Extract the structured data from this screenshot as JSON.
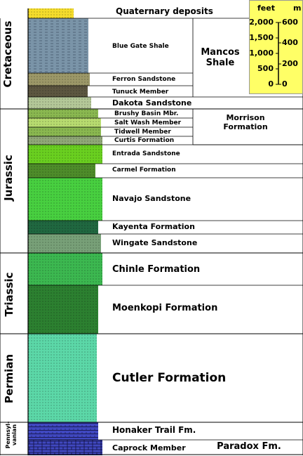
{
  "periods": [
    {
      "id": "cretaceous",
      "label": "Cretaceous"
    },
    {
      "id": "jurassic",
      "label": "Jurassic"
    },
    {
      "id": "triassic",
      "label": "Triassic"
    },
    {
      "id": "permian",
      "label": "Permian"
    },
    {
      "id": "pennsylvanian",
      "label": "Pennsyl-\nvanian"
    }
  ],
  "units": [
    {
      "id": "quaternary",
      "label": "Quaternary deposits",
      "color": "#f4dc2c"
    },
    {
      "id": "blue-gate",
      "label": "Blue Gate Shale",
      "color": "#7a94a8"
    },
    {
      "id": "ferron",
      "label": "Ferron Sandstone",
      "color": "#9c9868"
    },
    {
      "id": "tunuck",
      "label": "Tunuck Member",
      "color": "#5c5640"
    },
    {
      "id": "dakota",
      "label": "Dakota Sandstone",
      "color": "#b4c898"
    },
    {
      "id": "brushy-basin",
      "label": "Brushy Basin Mbr.",
      "color": "#8ab850"
    },
    {
      "id": "salt-wash",
      "label": "Salt Wash Member",
      "color": "#b8dc70"
    },
    {
      "id": "tidwell",
      "label": "Tidwell Member",
      "color": "#8ab850"
    },
    {
      "id": "curtis",
      "label": "Curtis Formation",
      "color": "#90a878"
    },
    {
      "id": "entrada",
      "label": "Entrada Sandstone",
      "color": "#6ad020"
    },
    {
      "id": "carmel",
      "label": "Carmel Formation",
      "color": "#4e8c2a"
    },
    {
      "id": "navajo",
      "label": "Navajo Sandstone",
      "color": "#48d040"
    },
    {
      "id": "kayenta",
      "label": "Kayenta Formation",
      "color": "#206840"
    },
    {
      "id": "wingate",
      "label": "Wingate Sandstone",
      "color": "#78a078"
    },
    {
      "id": "chinle",
      "label": "Chinle Formation",
      "color": "#3cb850"
    },
    {
      "id": "moenkopi",
      "label": "Moenkopi Formation",
      "color": "#2c8030"
    },
    {
      "id": "cutler",
      "label": "Cutler Formation",
      "color": "#5cd8a8"
    },
    {
      "id": "honaker",
      "label": "Honaker Trail Fm.",
      "color": "#4048c0"
    },
    {
      "id": "caprock",
      "label": "Caprock Member",
      "color": "#4048c0"
    }
  ],
  "groups": {
    "mancos": "Mancos\nShale",
    "morrison": "Morrison\nFormation",
    "paradox": "Paradox Fm."
  },
  "scale": {
    "feet_label": "feet",
    "m_label": "m",
    "feet_ticks": [
      "2,000",
      "1,500",
      "1,000",
      "500",
      "0"
    ],
    "m_ticks": [
      "600",
      "400",
      "200",
      "0"
    ]
  }
}
